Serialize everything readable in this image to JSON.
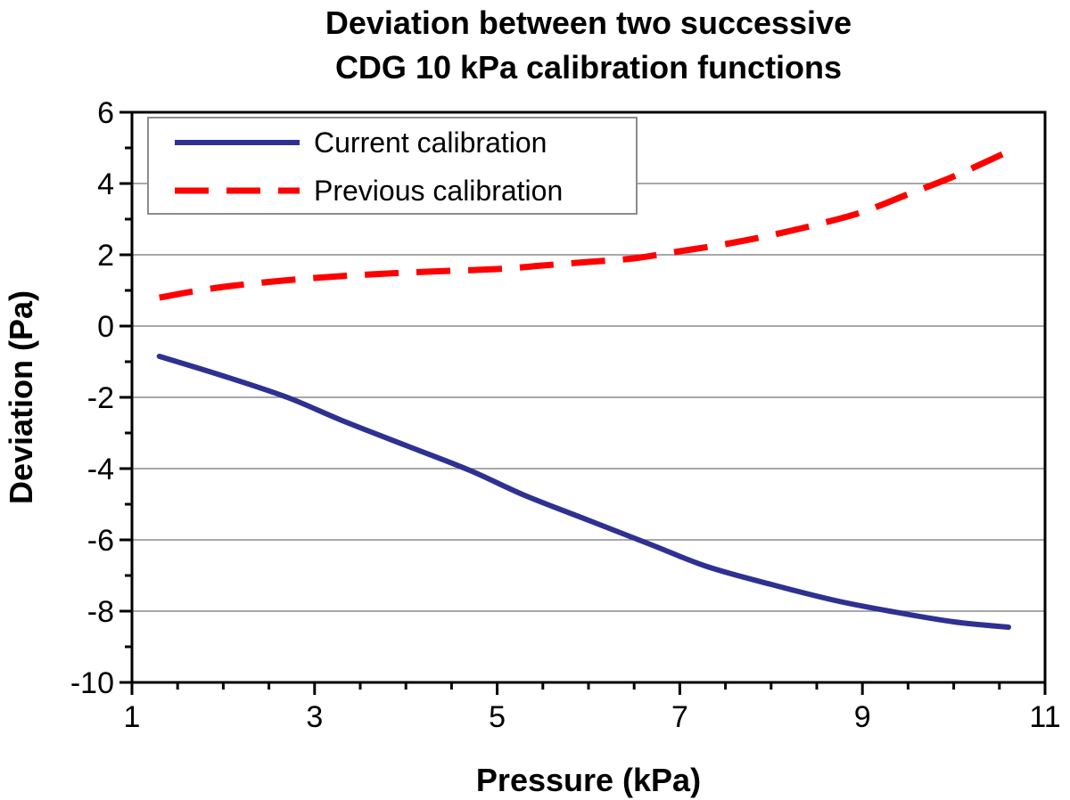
{
  "chart_data": {
    "type": "line",
    "title_lines": [
      "Deviation between two successive",
      "CDG 10 kPa calibration functions"
    ],
    "xlabel": "Pressure (kPa)",
    "ylabel": "Deviation (Pa)",
    "xlim": [
      1,
      11
    ],
    "ylim": [
      -10,
      6
    ],
    "xticks": [
      1,
      3,
      5,
      7,
      9,
      11
    ],
    "yticks": [
      6,
      4,
      2,
      0,
      -2,
      -4,
      -6,
      -8,
      -10
    ],
    "grid": true,
    "legend_position": "top-left",
    "series": [
      {
        "name": "Current calibration",
        "color": "#2e3192",
        "style": "solid",
        "x": [
          1.3,
          2.0,
          2.7,
          3.3,
          4.0,
          4.7,
          5.3,
          6.0,
          6.7,
          7.3,
          8.0,
          8.7,
          9.3,
          10.0,
          10.6
        ],
        "y": [
          -0.85,
          -1.4,
          -2.0,
          -2.65,
          -3.35,
          -4.05,
          -4.75,
          -5.45,
          -6.15,
          -6.75,
          -7.25,
          -7.7,
          -8.0,
          -8.3,
          -8.45
        ]
      },
      {
        "name": "Previous calibration",
        "color": "#ff0000",
        "style": "dashed",
        "x": [
          1.3,
          2.0,
          3.0,
          4.0,
          5.0,
          5.5,
          6.0,
          6.5,
          7.0,
          7.5,
          8.0,
          8.5,
          9.0,
          9.5,
          10.0,
          10.6
        ],
        "y": [
          0.8,
          1.1,
          1.35,
          1.5,
          1.6,
          1.7,
          1.8,
          1.9,
          2.1,
          2.3,
          2.55,
          2.85,
          3.2,
          3.7,
          4.2,
          4.9
        ]
      }
    ]
  }
}
